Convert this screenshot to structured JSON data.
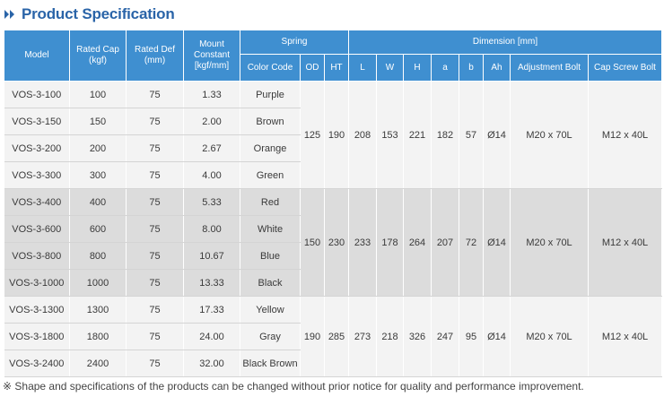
{
  "title": "Product Specification",
  "header": {
    "model": "Model",
    "rated_cap": "Rated Cap",
    "rated_cap_unit": "(kgf)",
    "rated_def": "Rated Def",
    "rated_def_unit": "(mm)",
    "mount_constant": "Mount",
    "mount_constant_2": "Constant",
    "mount_constant_unit": "[kgf/mm]",
    "spring": "Spring",
    "color_code": "Color Code",
    "od": "OD",
    "ht": "HT",
    "dimension": "Dimension [mm]",
    "l": "L",
    "w": "W",
    "h": "H",
    "a": "a",
    "b": "b",
    "ah": "Ah",
    "adjustment_bolt": "Adjustment Bolt",
    "cap_screw_bolt": "Cap Screw Bolt"
  },
  "rows": [
    {
      "model": "VOS-3-100",
      "cap": "100",
      "def": "75",
      "constant": "1.33",
      "color": "Purple"
    },
    {
      "model": "VOS-3-150",
      "cap": "150",
      "def": "75",
      "constant": "2.00",
      "color": "Brown"
    },
    {
      "model": "VOS-3-200",
      "cap": "200",
      "def": "75",
      "constant": "2.67",
      "color": "Orange"
    },
    {
      "model": "VOS-3-300",
      "cap": "300",
      "def": "75",
      "constant": "4.00",
      "color": "Green"
    },
    {
      "model": "VOS-3-400",
      "cap": "400",
      "def": "75",
      "constant": "5.33",
      "color": "Red"
    },
    {
      "model": "VOS-3-600",
      "cap": "600",
      "def": "75",
      "constant": "8.00",
      "color": "White"
    },
    {
      "model": "VOS-3-800",
      "cap": "800",
      "def": "75",
      "constant": "10.67",
      "color": "Blue"
    },
    {
      "model": "VOS-3-1000",
      "cap": "1000",
      "def": "75",
      "constant": "13.33",
      "color": "Black"
    },
    {
      "model": "VOS-3-1300",
      "cap": "1300",
      "def": "75",
      "constant": "17.33",
      "color": "Yellow"
    },
    {
      "model": "VOS-3-1800",
      "cap": "1800",
      "def": "75",
      "constant": "24.00",
      "color": "Gray"
    },
    {
      "model": "VOS-3-2400",
      "cap": "2400",
      "def": "75",
      "constant": "32.00",
      "color": "Black Brown"
    }
  ],
  "groups": [
    {
      "od": "125",
      "ht": "190",
      "l": "208",
      "w": "153",
      "h": "221",
      "a": "182",
      "b": "57",
      "ah": "Ø14",
      "adj_bolt": "M20 x 70L",
      "cap_bolt": "M12 x 40L"
    },
    {
      "od": "150",
      "ht": "230",
      "l": "233",
      "w": "178",
      "h": "264",
      "a": "207",
      "b": "72",
      "ah": "Ø14",
      "adj_bolt": "M20 x 70L",
      "cap_bolt": "M12 x 40L"
    },
    {
      "od": "190",
      "ht": "285",
      "l": "273",
      "w": "218",
      "h": "326",
      "a": "247",
      "b": "95",
      "ah": "Ø14",
      "adj_bolt": "M20 x 70L",
      "cap_bolt": "M12 x 40L"
    }
  ],
  "footnote": "※ Shape and specifications of the products can be changed without prior notice for quality and performance improvement.",
  "colors": {
    "title": "#2a64a8",
    "header_bg": "#3f8fd0",
    "row_light": "#f3f3f3",
    "row_dark": "#dcdcdc"
  },
  "icons": {
    "title_icon": "double-chevron-right-icon"
  }
}
